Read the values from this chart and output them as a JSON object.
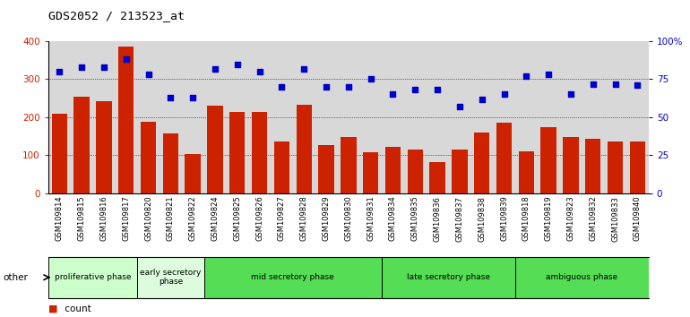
{
  "title": "GDS2052 / 213523_at",
  "samples": [
    "GSM109814",
    "GSM109815",
    "GSM109816",
    "GSM109817",
    "GSM109820",
    "GSM109821",
    "GSM109822",
    "GSM109824",
    "GSM109825",
    "GSM109826",
    "GSM109827",
    "GSM109828",
    "GSM109829",
    "GSM109830",
    "GSM109831",
    "GSM109834",
    "GSM109835",
    "GSM109836",
    "GSM109837",
    "GSM109838",
    "GSM109839",
    "GSM109818",
    "GSM109819",
    "GSM109823",
    "GSM109832",
    "GSM109833",
    "GSM109840"
  ],
  "counts": [
    210,
    253,
    242,
    385,
    188,
    158,
    103,
    230,
    213,
    213,
    136,
    232,
    128,
    148,
    107,
    123,
    116,
    83,
    115,
    160,
    185,
    110,
    173,
    147,
    143,
    136,
    136
  ],
  "percentile": [
    80,
    83,
    83,
    88,
    78,
    63,
    63,
    82,
    85,
    80,
    70,
    82,
    70,
    70,
    75,
    65,
    68,
    68,
    57,
    62,
    65,
    77,
    78,
    65,
    72,
    72,
    71
  ],
  "bar_color": "#cc2200",
  "dot_color": "#0000cc",
  "phases": [
    {
      "label": "proliferative phase",
      "start": 0,
      "end": 4,
      "color": "#ccffcc",
      "n": 4
    },
    {
      "label": "early secretory\nphase",
      "start": 4,
      "end": 7,
      "color": "#ddfcdd",
      "n": 3
    },
    {
      "label": "mid secretory phase",
      "start": 7,
      "end": 15,
      "color": "#55dd55",
      "n": 8
    },
    {
      "label": "late secretory phase",
      "start": 15,
      "end": 21,
      "color": "#55dd55",
      "n": 6
    },
    {
      "label": "ambiguous phase",
      "start": 21,
      "end": 27,
      "color": "#55dd55",
      "n": 6
    }
  ],
  "ylim_left": [
    0,
    400
  ],
  "ylim_right": [
    0,
    100
  ],
  "yticks_left": [
    0,
    100,
    200,
    300,
    400
  ],
  "yticks_right": [
    0,
    25,
    50,
    75,
    100
  ],
  "ytick_labels_right": [
    "0",
    "25",
    "50",
    "75",
    "100%"
  ],
  "grid_values": [
    100,
    200,
    300
  ],
  "plot_bg": "#d8d8d8",
  "fig_bg": "#ffffff",
  "tick_bg": "#c8c8c8"
}
